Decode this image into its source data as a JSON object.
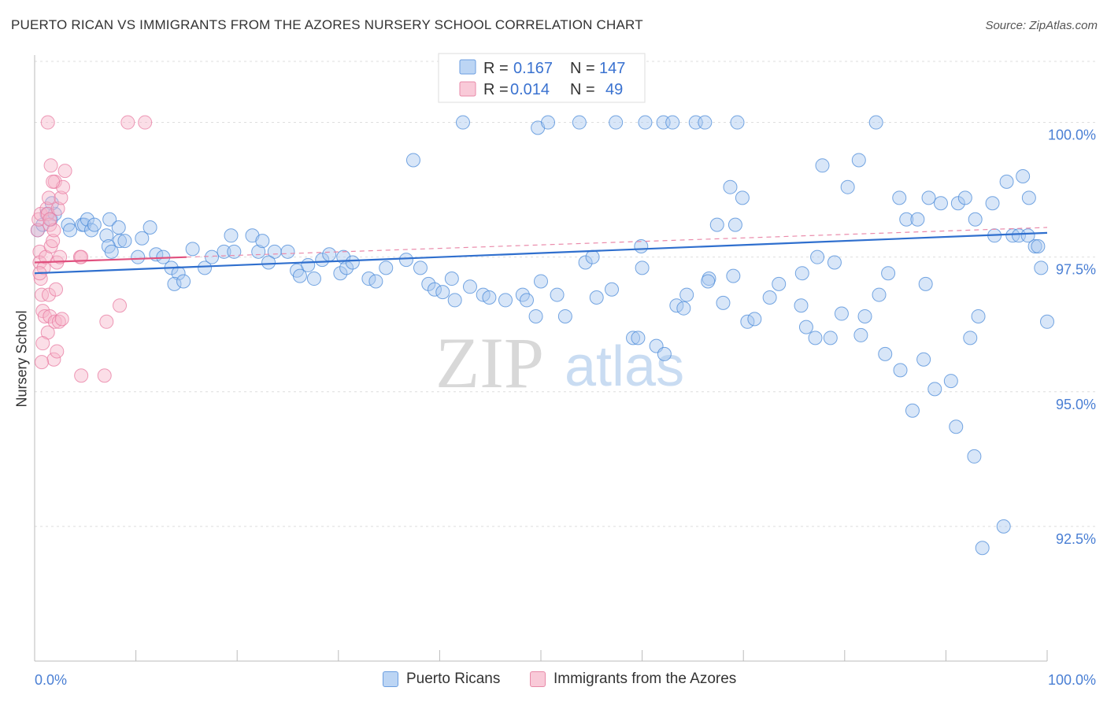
{
  "header": {
    "title": "PUERTO RICAN VS IMMIGRANTS FROM THE AZORES NURSERY SCHOOL CORRELATION CHART",
    "source": "Source: ZipAtlas.com"
  },
  "watermark": {
    "part1": "ZIP",
    "part2": "atlas"
  },
  "legend_box": {
    "rows": [
      {
        "r_label": "R = ",
        "r_value": "0.167",
        "n_label": "N = ",
        "n_value": "147",
        "color": "#a8c8f0"
      },
      {
        "r_label": "R = ",
        "r_value": "0.014",
        "n_label": "N = ",
        "n_value": "49",
        "color": "#f6b5c9"
      }
    ]
  },
  "bottom_legend": {
    "items": [
      {
        "label": "Puerto Ricans",
        "color": "#a8c8f0"
      },
      {
        "label": "Immigrants from the Azores",
        "color": "#f6b5c9"
      }
    ]
  },
  "chart_data": {
    "type": "scatter",
    "title": "PUERTO RICAN VS IMMIGRANTS FROM THE AZORES NURSERY SCHOOL CORRELATION CHART",
    "xlabel": "",
    "ylabel": "Nursery School",
    "xlim": [
      0,
      100
    ],
    "ylim": [
      90.0,
      101.25
    ],
    "x_tick_labels": [
      "0.0%",
      "100.0%"
    ],
    "y_ticks": [
      {
        "value": 100.0,
        "label": "100.0%"
      },
      {
        "value": 97.5,
        "label": "97.5%"
      },
      {
        "value": 95.0,
        "label": "95.0%"
      },
      {
        "value": 92.5,
        "label": "92.5%"
      }
    ],
    "grid": "horizontal dashed",
    "legend_position": "top-center",
    "series": [
      {
        "name": "Puerto Ricans",
        "color": "#4a8ad8",
        "fill": "#a8c8f0",
        "trend": {
          "x": [
            0,
            100
          ],
          "y": [
            97.2,
            97.95
          ]
        },
        "points": [
          [
            0.3,
            98.0
          ],
          [
            0.8,
            98.1
          ],
          [
            1.2,
            98.3
          ],
          [
            1.6,
            98.2
          ],
          [
            2.0,
            98.3
          ],
          [
            1.7,
            98.5
          ],
          [
            3.3,
            98.1
          ],
          [
            3.5,
            98.0
          ],
          [
            4.7,
            98.1
          ],
          [
            4.9,
            98.1
          ],
          [
            5.2,
            98.2
          ],
          [
            5.6,
            98.0
          ],
          [
            5.9,
            98.1
          ],
          [
            7.4,
            98.2
          ],
          [
            8.3,
            98.05
          ],
          [
            7.1,
            97.9
          ],
          [
            8.4,
            97.8
          ],
          [
            8.9,
            97.8
          ],
          [
            7.3,
            97.7
          ],
          [
            7.6,
            97.6
          ],
          [
            10.6,
            97.85
          ],
          [
            11.4,
            98.05
          ],
          [
            10.2,
            97.5
          ],
          [
            12.0,
            97.55
          ],
          [
            12.7,
            97.5
          ],
          [
            13.5,
            97.3
          ],
          [
            14.2,
            97.2
          ],
          [
            13.8,
            97.0
          ],
          [
            14.7,
            97.05
          ],
          [
            15.6,
            97.65
          ],
          [
            16.8,
            97.3
          ],
          [
            17.5,
            97.5
          ],
          [
            18.7,
            97.6
          ],
          [
            19.7,
            97.6
          ],
          [
            19.4,
            97.9
          ],
          [
            21.5,
            97.9
          ],
          [
            22.1,
            97.6
          ],
          [
            22.5,
            97.8
          ],
          [
            23.7,
            97.6
          ],
          [
            23.1,
            97.4
          ],
          [
            25.0,
            97.6
          ],
          [
            25.9,
            97.25
          ],
          [
            26.2,
            97.15
          ],
          [
            27.0,
            97.35
          ],
          [
            27.6,
            97.1
          ],
          [
            28.4,
            97.45
          ],
          [
            29.1,
            97.55
          ],
          [
            30.5,
            97.5
          ],
          [
            30.2,
            97.2
          ],
          [
            30.8,
            97.3
          ],
          [
            31.4,
            97.4
          ],
          [
            33.0,
            97.1
          ],
          [
            33.7,
            97.05
          ],
          [
            34.7,
            97.3
          ],
          [
            36.7,
            97.45
          ],
          [
            38.1,
            97.3
          ],
          [
            38.9,
            97.0
          ],
          [
            39.5,
            96.9
          ],
          [
            40.3,
            96.85
          ],
          [
            41.2,
            97.1
          ],
          [
            41.5,
            96.7
          ],
          [
            43.0,
            96.95
          ],
          [
            44.3,
            96.8
          ],
          [
            44.9,
            96.75
          ],
          [
            46.5,
            96.7
          ],
          [
            48.2,
            96.8
          ],
          [
            48.6,
            96.7
          ],
          [
            49.5,
            96.4
          ],
          [
            50.0,
            97.05
          ],
          [
            51.6,
            96.8
          ],
          [
            52.4,
            96.4
          ],
          [
            54.4,
            97.4
          ],
          [
            55.1,
            97.5
          ],
          [
            55.5,
            96.75
          ],
          [
            57.0,
            96.9
          ],
          [
            59.1,
            96.0
          ],
          [
            59.6,
            96.0
          ],
          [
            60.0,
            97.3
          ],
          [
            61.4,
            95.85
          ],
          [
            62.2,
            95.7
          ],
          [
            63.4,
            96.6
          ],
          [
            64.1,
            96.55
          ],
          [
            64.4,
            96.8
          ],
          [
            66.6,
            97.1
          ],
          [
            66.5,
            97.05
          ],
          [
            68.0,
            96.65
          ],
          [
            69.0,
            97.15
          ],
          [
            70.4,
            96.3
          ],
          [
            71.1,
            96.35
          ],
          [
            72.6,
            96.75
          ],
          [
            73.5,
            97.0
          ],
          [
            75.7,
            96.6
          ],
          [
            76.2,
            96.2
          ],
          [
            77.1,
            96.0
          ],
          [
            78.6,
            96.0
          ],
          [
            79.7,
            96.45
          ],
          [
            81.6,
            96.05
          ],
          [
            82.0,
            96.4
          ],
          [
            84.0,
            95.7
          ],
          [
            85.5,
            95.4
          ],
          [
            86.7,
            94.65
          ],
          [
            87.8,
            95.6
          ],
          [
            88.9,
            95.05
          ],
          [
            90.5,
            95.2
          ],
          [
            91.0,
            94.35
          ],
          [
            92.8,
            93.8
          ],
          [
            93.6,
            92.1
          ],
          [
            95.7,
            92.5
          ],
          [
            98.2,
            98.6
          ],
          [
            98.8,
            97.7
          ],
          [
            99.4,
            97.3
          ],
          [
            92.4,
            96.0
          ],
          [
            93.2,
            96.4
          ],
          [
            94.6,
            98.5
          ],
          [
            96.0,
            98.9
          ],
          [
            97.6,
            99.0
          ],
          [
            99.1,
            97.7
          ],
          [
            100.0,
            96.3
          ],
          [
            42.3,
            100.0
          ],
          [
            49.7,
            99.9
          ],
          [
            50.7,
            100.0
          ],
          [
            53.8,
            100.0
          ],
          [
            57.4,
            100.0
          ],
          [
            60.3,
            100.0
          ],
          [
            62.1,
            100.0
          ],
          [
            63.0,
            100.0
          ],
          [
            65.3,
            100.0
          ],
          [
            66.2,
            100.0
          ],
          [
            69.4,
            100.0
          ],
          [
            83.1,
            100.0
          ],
          [
            37.4,
            99.3
          ],
          [
            68.7,
            98.8
          ],
          [
            69.9,
            98.6
          ],
          [
            77.8,
            99.2
          ],
          [
            80.3,
            98.8
          ],
          [
            81.4,
            99.3
          ],
          [
            85.4,
            98.6
          ],
          [
            86.1,
            98.2
          ],
          [
            87.2,
            98.2
          ],
          [
            88.3,
            98.6
          ],
          [
            89.5,
            98.5
          ],
          [
            91.2,
            98.5
          ],
          [
            91.9,
            98.6
          ],
          [
            75.8,
            97.2
          ],
          [
            77.3,
            97.5
          ],
          [
            92.9,
            98.2
          ],
          [
            94.8,
            97.9
          ],
          [
            96.6,
            97.9
          ],
          [
            97.2,
            97.9
          ],
          [
            98.1,
            97.9
          ],
          [
            88.0,
            97.0
          ],
          [
            59.9,
            97.7
          ],
          [
            67.4,
            98.1
          ],
          [
            69.2,
            98.1
          ],
          [
            79.0,
            97.4
          ],
          [
            83.4,
            96.8
          ],
          [
            84.3,
            97.2
          ]
        ]
      },
      {
        "name": "Immigrants from the Azores",
        "color": "#e87aa0",
        "fill": "#f6b5c9",
        "trend": {
          "x": [
            0,
            15
          ],
          "y": [
            97.4,
            97.5
          ],
          "dashed_extension": {
            "x": [
              15,
              100
            ],
            "y": [
              97.5,
              98.05
            ]
          }
        },
        "points": [
          [
            0.3,
            98.0
          ],
          [
            0.4,
            98.2
          ],
          [
            0.6,
            98.3
          ],
          [
            0.5,
            97.6
          ],
          [
            0.5,
            97.4
          ],
          [
            0.6,
            97.1
          ],
          [
            0.7,
            96.8
          ],
          [
            0.8,
            96.5
          ],
          [
            1.0,
            96.4
          ],
          [
            0.9,
            97.3
          ],
          [
            1.1,
            97.5
          ],
          [
            1.2,
            98.4
          ],
          [
            1.3,
            98.3
          ],
          [
            1.5,
            98.1
          ],
          [
            1.4,
            98.6
          ],
          [
            1.6,
            97.7
          ],
          [
            1.8,
            97.8
          ],
          [
            1.9,
            98.0
          ],
          [
            2.0,
            98.9
          ],
          [
            2.3,
            98.4
          ],
          [
            2.6,
            98.6
          ],
          [
            2.8,
            98.8
          ],
          [
            3.0,
            99.1
          ],
          [
            1.6,
            99.2
          ],
          [
            1.8,
            98.9
          ],
          [
            1.5,
            98.2
          ],
          [
            1.4,
            96.8
          ],
          [
            1.5,
            96.4
          ],
          [
            1.3,
            96.1
          ],
          [
            2.1,
            96.9
          ],
          [
            2.0,
            96.3
          ],
          [
            2.4,
            96.3
          ],
          [
            2.7,
            96.35
          ],
          [
            1.9,
            95.6
          ],
          [
            2.2,
            95.75
          ],
          [
            0.8,
            95.9
          ],
          [
            0.7,
            95.55
          ],
          [
            0.5,
            97.2
          ],
          [
            2.2,
            97.4
          ],
          [
            2.5,
            97.5
          ],
          [
            4.5,
            97.5
          ],
          [
            4.6,
            97.5
          ],
          [
            7.1,
            96.3
          ],
          [
            8.4,
            96.6
          ],
          [
            4.6,
            95.3
          ],
          [
            6.9,
            95.3
          ],
          [
            1.3,
            100.0
          ],
          [
            9.2,
            100.0
          ],
          [
            10.9,
            100.0
          ]
        ]
      }
    ]
  }
}
